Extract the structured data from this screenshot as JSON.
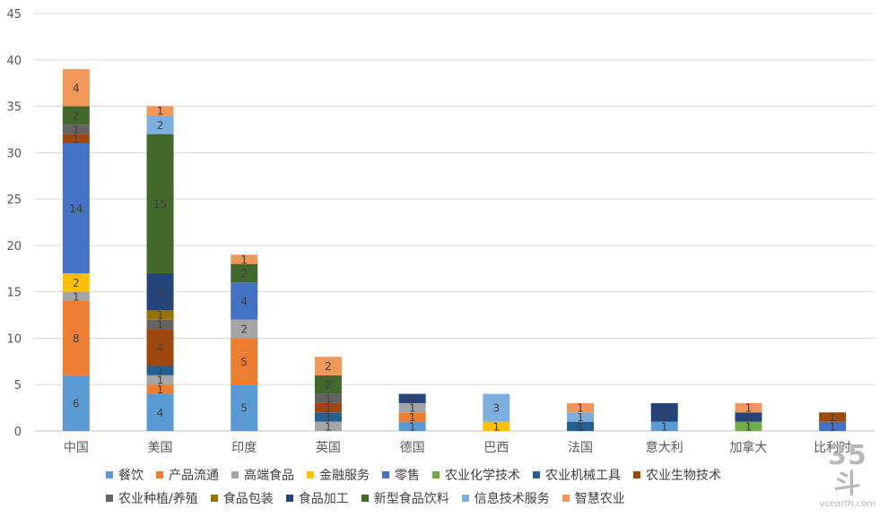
{
  "chart_data": {
    "type": "bar",
    "stacked": true,
    "categories": [
      "中国",
      "美国",
      "印度",
      "英国",
      "德国",
      "巴西",
      "法国",
      "意大利",
      "加拿大",
      "比利时"
    ],
    "ylim": [
      0,
      45
    ],
    "yticks": [
      0,
      5,
      10,
      15,
      20,
      25,
      30,
      35,
      40,
      45
    ],
    "grid": true,
    "legend_position": "bottom",
    "series": [
      {
        "name": "餐饮",
        "color": "#5B9BD5",
        "values": [
          6,
          4,
          5,
          0,
          1,
          0,
          0,
          1,
          0,
          0
        ]
      },
      {
        "name": "产品流通",
        "color": "#ED7D31",
        "values": [
          8,
          1,
          5,
          0,
          1,
          0,
          0,
          0,
          0,
          0
        ]
      },
      {
        "name": "高端食品",
        "color": "#A5A5A5",
        "values": [
          1,
          1,
          2,
          1,
          1,
          0,
          0,
          0,
          0,
          0
        ]
      },
      {
        "name": "金融服务",
        "color": "#FFC000",
        "values": [
          2,
          0,
          0,
          0,
          0,
          1,
          0,
          0,
          0,
          0
        ]
      },
      {
        "name": "零售",
        "color": "#4472C4",
        "values": [
          14,
          0,
          4,
          0,
          0,
          0,
          0,
          0,
          0,
          1
        ]
      },
      {
        "name": "农业化学技术",
        "color": "#70AD47",
        "values": [
          0,
          0,
          0,
          0,
          0,
          0,
          0,
          0,
          1,
          0
        ]
      },
      {
        "name": "农业机械工具",
        "color": "#255E91",
        "values": [
          0,
          1,
          0,
          1,
          0,
          0,
          1,
          0,
          0,
          0
        ]
      },
      {
        "name": "农业生物技术",
        "color": "#9E480E",
        "values": [
          1,
          4,
          0,
          1,
          0,
          0,
          0,
          0,
          0,
          1
        ]
      },
      {
        "name": "农业种植/养殖",
        "color": "#636363",
        "values": [
          1,
          1,
          0,
          1,
          0,
          0,
          0,
          0,
          0,
          0
        ]
      },
      {
        "name": "食品包装",
        "color": "#997300",
        "values": [
          0,
          1,
          0,
          0,
          0,
          0,
          0,
          0,
          0,
          0
        ]
      },
      {
        "name": "食品加工",
        "color": "#264478",
        "values": [
          0,
          4,
          0,
          0,
          1,
          0,
          0,
          2,
          1,
          0
        ]
      },
      {
        "name": "新型食品饮料",
        "color": "#43682B",
        "values": [
          2,
          15,
          2,
          2,
          0,
          0,
          0,
          0,
          0,
          0
        ]
      },
      {
        "name": "信息技术服务",
        "color": "#7CAFDD",
        "values": [
          0,
          2,
          0,
          0,
          0,
          3,
          1,
          0,
          0,
          0
        ]
      },
      {
        "name": "智慧农业",
        "color": "#F1975A",
        "values": [
          4,
          1,
          1,
          2,
          0,
          0,
          1,
          0,
          1,
          0
        ]
      }
    ]
  },
  "watermark": {
    "big": "35斗",
    "small": "vcearth.com"
  }
}
